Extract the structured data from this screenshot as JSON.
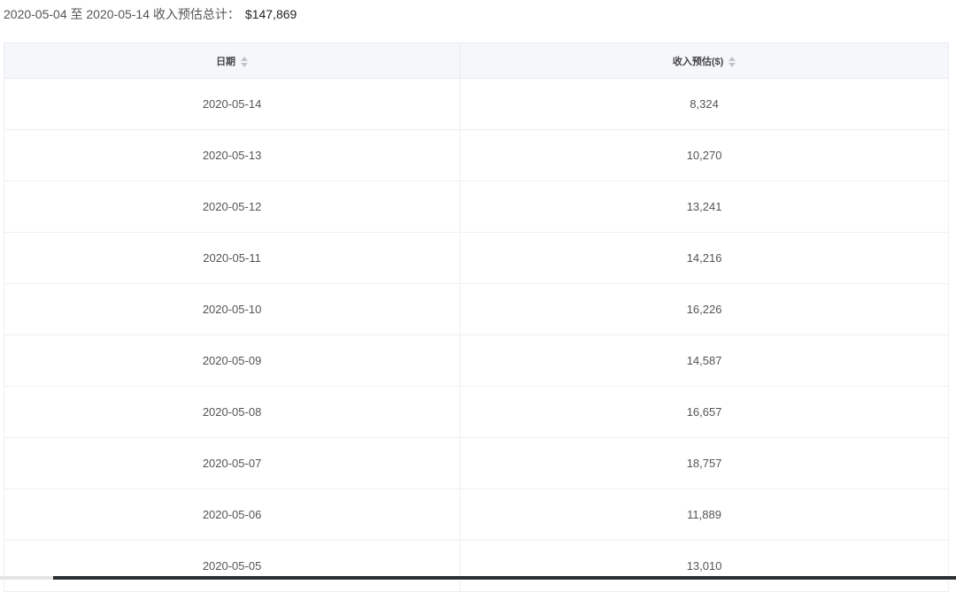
{
  "summary": {
    "text": "2020-05-04 至 2020-05-14 收入预估总计：",
    "total": "$147,869"
  },
  "table": {
    "headers": [
      "日期",
      "收入预估($)"
    ],
    "rows": [
      [
        "2020-05-14",
        "8,324"
      ],
      [
        "2020-05-13",
        "10,270"
      ],
      [
        "2020-05-12",
        "13,241"
      ],
      [
        "2020-05-11",
        "14,216"
      ],
      [
        "2020-05-10",
        "16,226"
      ],
      [
        "2020-05-09",
        "14,587"
      ],
      [
        "2020-05-08",
        "16,657"
      ],
      [
        "2020-05-07",
        "18,757"
      ],
      [
        "2020-05-06",
        "11,889"
      ],
      [
        "2020-05-05",
        "13,010"
      ]
    ]
  }
}
